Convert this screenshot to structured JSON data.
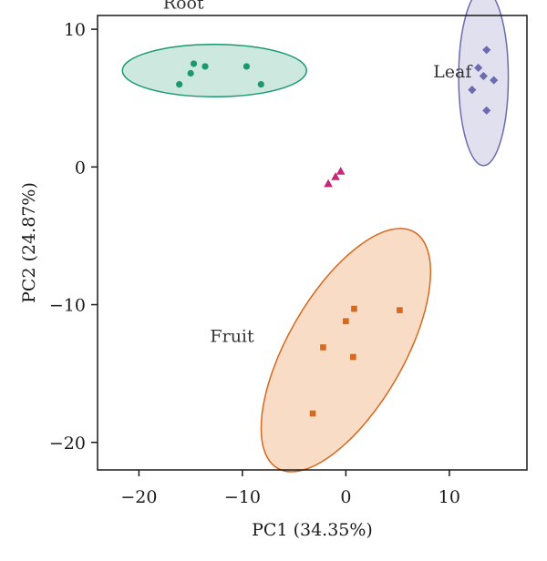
{
  "chart_data": {
    "type": "scatter",
    "title": "",
    "xlabel": "PC1 (34.35%)",
    "ylabel": "PC2 (24.87%)",
    "xlim": [
      -24,
      17.5
    ],
    "ylim": [
      -22,
      11
    ],
    "xticks": [
      -20,
      -10,
      0,
      10
    ],
    "yticks": [
      10,
      0,
      -10,
      -20
    ],
    "grid": false,
    "legend": "none",
    "groups": [
      {
        "label": "Root",
        "color": "#1a9a6c",
        "fill": "#cde8df",
        "marker": "circle",
        "points": [
          {
            "x": -14.7,
            "y": 7.5
          },
          {
            "x": -15.0,
            "y": 6.8
          },
          {
            "x": -13.6,
            "y": 7.3
          },
          {
            "x": -9.6,
            "y": 7.3
          },
          {
            "x": -16.1,
            "y": 6.0
          },
          {
            "x": -8.2,
            "y": 6.0
          }
        ],
        "ellipse": {
          "cx": -12.7,
          "cy": 7.0,
          "rx": 8.9,
          "ry": 1.9,
          "angle_deg": 0
        }
      },
      {
        "label": "Leaf",
        "color": "#6e6ab0",
        "fill": "#e0e0ef",
        "marker": "diamond",
        "points": [
          {
            "x": 13.6,
            "y": 8.5
          },
          {
            "x": 12.8,
            "y": 7.2
          },
          {
            "x": 13.3,
            "y": 6.6
          },
          {
            "x": 14.3,
            "y": 6.3
          },
          {
            "x": 12.2,
            "y": 5.6
          },
          {
            "x": 13.6,
            "y": 4.1
          }
        ],
        "ellipse": {
          "cx": 13.3,
          "cy": 6.5,
          "rx": 2.4,
          "ry": 6.4,
          "angle_deg": 0
        }
      },
      {
        "label": "",
        "color": "#c8287a",
        "marker": "triangle",
        "points": [
          {
            "x": -0.5,
            "y": -0.3
          },
          {
            "x": -1.0,
            "y": -0.7
          },
          {
            "x": -1.7,
            "y": -1.2
          }
        ]
      },
      {
        "label": "Fruit",
        "color": "#d4691f",
        "fill": "#f9dcc5",
        "marker": "square",
        "points": [
          {
            "x": 0.8,
            "y": -10.3
          },
          {
            "x": 5.2,
            "y": -10.4
          },
          {
            "x": 0.0,
            "y": -11.2
          },
          {
            "x": -2.2,
            "y": -13.1
          },
          {
            "x": 0.7,
            "y": -13.8
          },
          {
            "x": -3.2,
            "y": -17.9
          }
        ],
        "ellipse": {
          "cx": 0.0,
          "cy": -13.3,
          "rx": 13.2,
          "ry": 4.2,
          "angle_deg": 60
        }
      }
    ]
  }
}
